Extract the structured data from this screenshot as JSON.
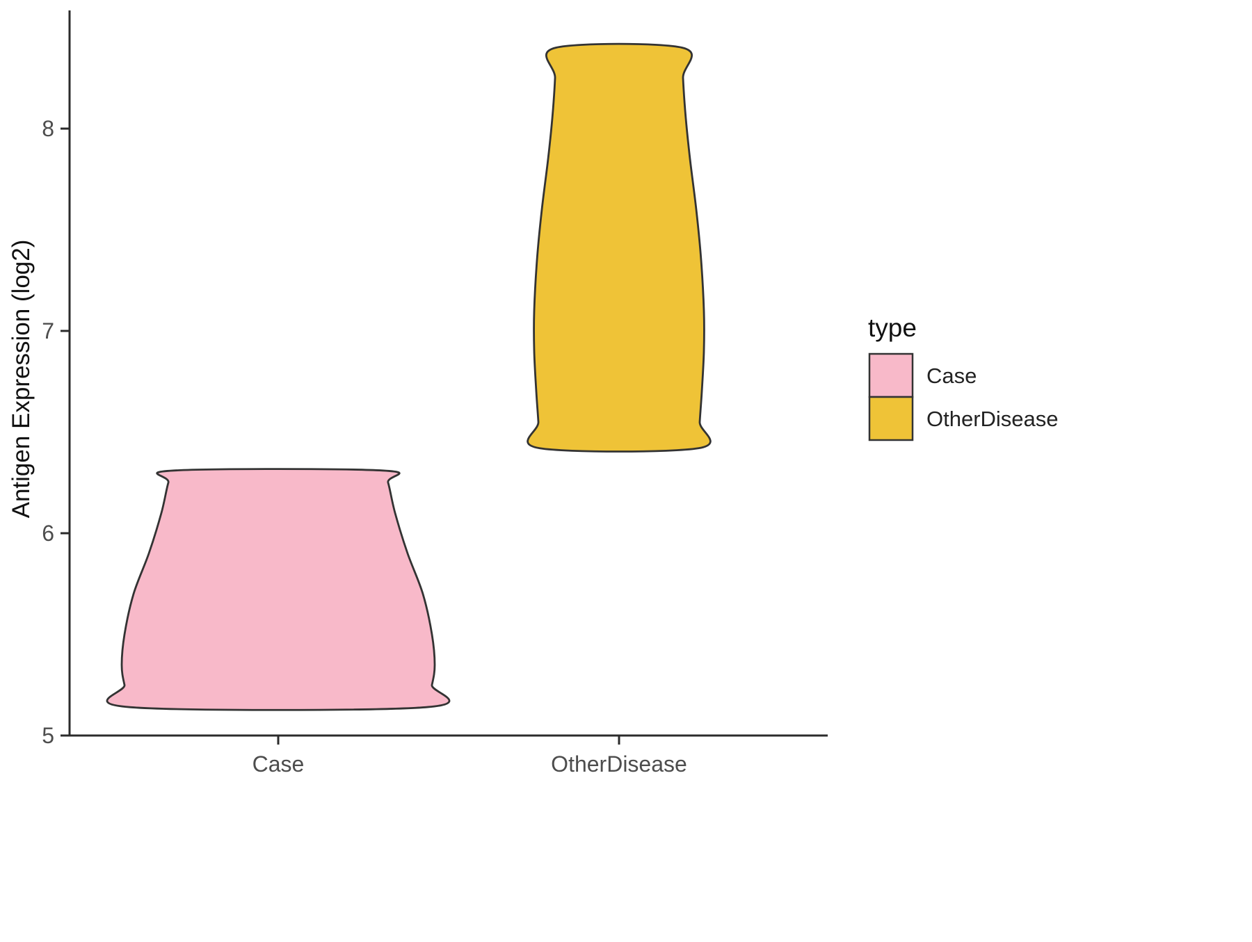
{
  "chart_data": {
    "type": "violin",
    "title": "",
    "xlabel": "",
    "ylabel": "Antigen Expression (log2)",
    "categories": [
      "Case",
      "OtherDisease"
    ],
    "yticks": [
      5,
      6,
      7,
      8
    ],
    "ylim": [
      5,
      8.6
    ],
    "grid": false,
    "background": "#ffffff",
    "axis_color": "#2b2b2b",
    "legend": {
      "title": "type",
      "position": "right",
      "entries": [
        {
          "label": "Case",
          "color": "#F8B9C9"
        },
        {
          "label": "OtherDisease",
          "color": "#EFC337"
        }
      ]
    },
    "profile_format": "[y_value, halfwidth_px] density outline, mirrored about category center",
    "series": [
      {
        "name": "Case",
        "fill": "#F8B9C9",
        "outline": "#333333",
        "value_range": [
          5.14,
          6.31
        ],
        "profile": [
          [
            6.31,
            150
          ],
          [
            6.25,
            158
          ],
          [
            6.1,
            168
          ],
          [
            5.9,
            186
          ],
          [
            5.7,
            208
          ],
          [
            5.5,
            221
          ],
          [
            5.35,
            225
          ],
          [
            5.25,
            221
          ],
          [
            5.14,
            212
          ]
        ]
      },
      {
        "name": "OtherDisease",
        "fill": "#EFC337",
        "outline": "#333333",
        "value_range": [
          6.42,
          8.4
        ],
        "profile": [
          [
            8.4,
            91
          ],
          [
            8.25,
            92
          ],
          [
            8.05,
            96
          ],
          [
            7.85,
            102
          ],
          [
            7.6,
            111
          ],
          [
            7.35,
            118
          ],
          [
            7.1,
            122
          ],
          [
            6.9,
            122
          ],
          [
            6.7,
            119
          ],
          [
            6.55,
            116
          ],
          [
            6.42,
            114
          ]
        ]
      }
    ]
  }
}
